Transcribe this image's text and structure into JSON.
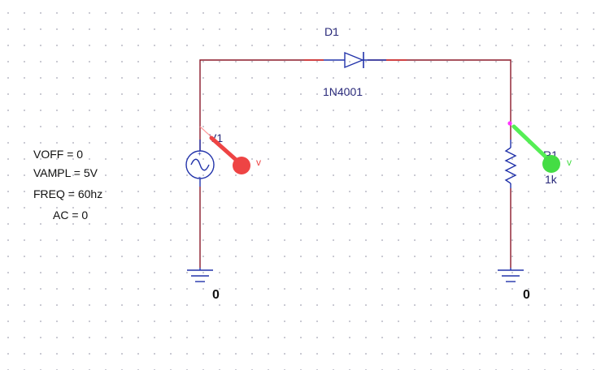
{
  "schematic": {
    "diode": {
      "ref": "D1",
      "value": "1N4001"
    },
    "source": {
      "ref": "V1",
      "params": [
        "VOFF = 0",
        "VAMPL = 5V",
        "FREQ = 60hz",
        "AC = 0"
      ]
    },
    "resistor": {
      "ref": "R1",
      "value": "1k"
    },
    "ground_left": {
      "label": "0"
    },
    "ground_right": {
      "label": "0"
    },
    "probe_v1": {
      "label": "v",
      "color": "#ee4444"
    },
    "probe_r1": {
      "label": "v",
      "color": "#44dd44"
    }
  },
  "colors": {
    "wire": "#8b1a2a",
    "part": "#2233aa",
    "label": "#2a2a7a",
    "text": "#111111",
    "pin": "#d42a2a"
  }
}
